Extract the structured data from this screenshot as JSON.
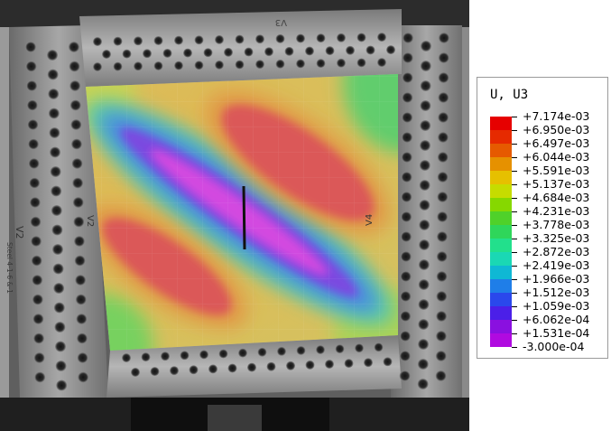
{
  "legend": {
    "title": "U, U3",
    "labels": [
      "+7.174e-03",
      "+6.950e-03",
      "+6.497e-03",
      "+6.044e-03",
      "+5.591e-03",
      "+5.137e-03",
      "+4.684e-03",
      "+4.231e-03",
      "+3.778e-03",
      "+3.325e-03",
      "+2.872e-03",
      "+2.419e-03",
      "+1.966e-03",
      "+1.512e-03",
      "+1.059e-03",
      "+6.062e-04",
      "+1.531e-04",
      "-3.000e-04"
    ],
    "colors": [
      "#e60000",
      "#e62a00",
      "#e65a00",
      "#e69100",
      "#e6c000",
      "#c6dc00",
      "#86d800",
      "#4fd12a",
      "#2fd65a",
      "#22e08c",
      "#1ad8b4",
      "#0fb8d4",
      "#1f7ee8",
      "#2a48ec",
      "#4b1fe8",
      "#8a10e0",
      "#b00ae0"
    ]
  },
  "photo": {
    "side_markings": [
      "V2",
      "V3",
      "V2",
      "V4"
    ],
    "specimen_text": "Steel 4-1-6 &-1"
  }
}
